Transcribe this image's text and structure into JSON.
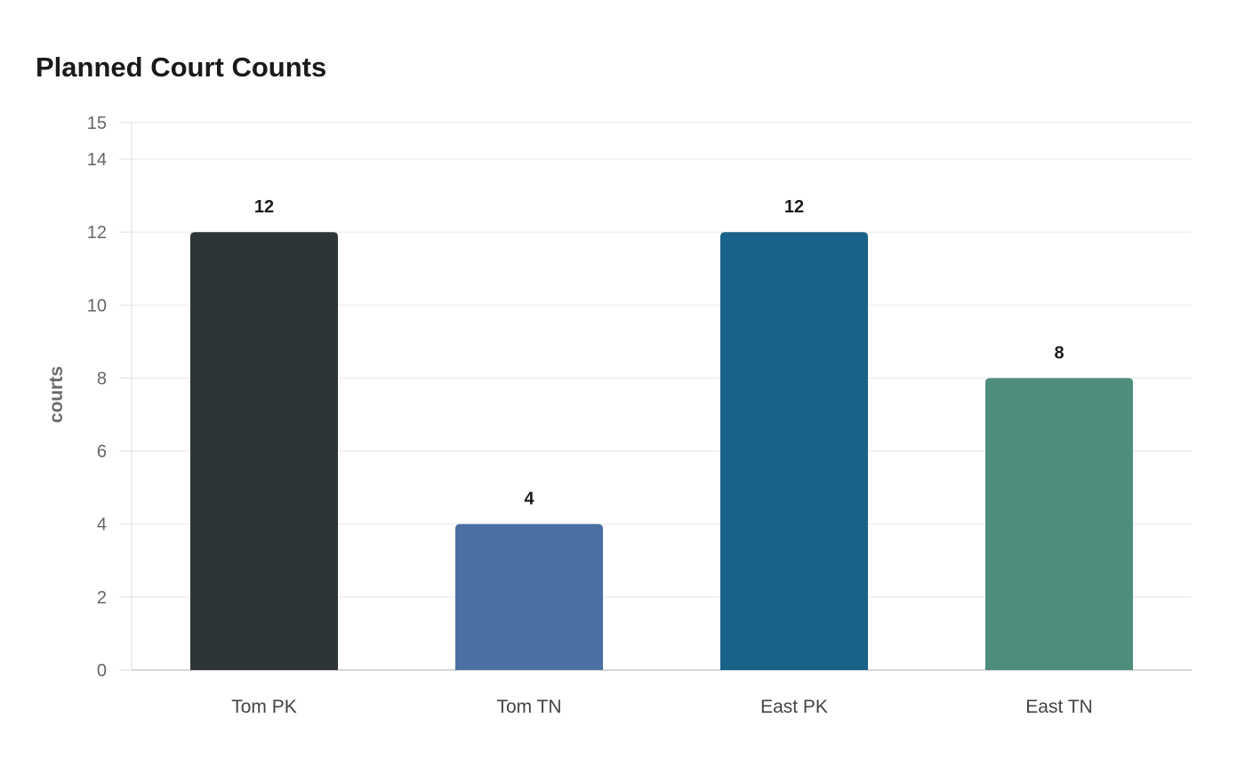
{
  "chart_data": {
    "type": "bar",
    "title": "Planned Court Counts",
    "xlabel": "",
    "ylabel": "courts",
    "categories": [
      "Tom PK",
      "Tom TN",
      "East PK",
      "East TN"
    ],
    "values": [
      12,
      4,
      12,
      8
    ],
    "colors": [
      "#2d3536",
      "#4a70a4",
      "#186188",
      "#4e8d7c"
    ],
    "ylim": [
      0,
      15
    ],
    "yticks": [
      0,
      2,
      4,
      6,
      8,
      10,
      12,
      14,
      15
    ],
    "grid": true,
    "legend": "none"
  }
}
